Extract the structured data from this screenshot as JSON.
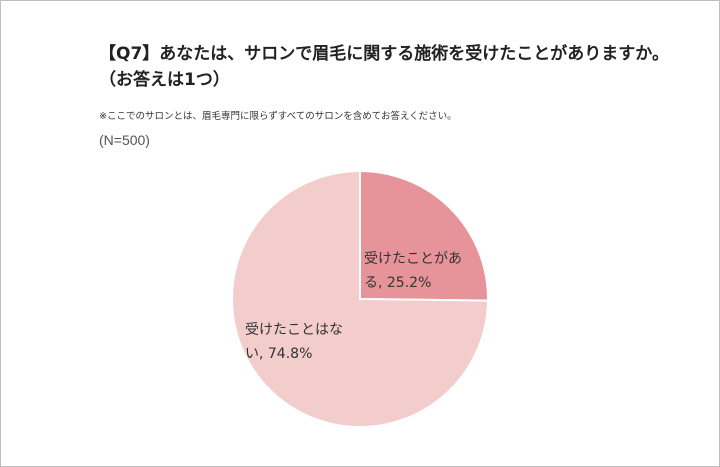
{
  "title": "【Q7】あなたは、サロンで眉毛に関する施術を受けたことがありますか。\n（お答えは1つ）",
  "note": "※ここでのサロンとは、眉毛専門に限らずすべてのサロンを含めてお答えください。",
  "sample_size": "(N=500)",
  "colors": {
    "slice_1": "#e6939a",
    "slice_2": "#f3cccc",
    "stroke": "#ffffff"
  },
  "chart_data": {
    "type": "pie",
    "title": "【Q7】あなたは、サロンで眉毛に関する施術を受けたことがありますか。（お答えは1つ）",
    "slices": [
      {
        "label": "受けたことがある",
        "value": 25.2,
        "display_line1": "受けたことがあ",
        "display_line2": "る, 25.2%"
      },
      {
        "label": "受けたことはない",
        "value": 74.8,
        "display_line1": "受けたことはな",
        "display_line2": "い, 74.8%"
      }
    ],
    "unit": "%",
    "start_angle": "12 o'clock",
    "direction": "clockwise"
  }
}
